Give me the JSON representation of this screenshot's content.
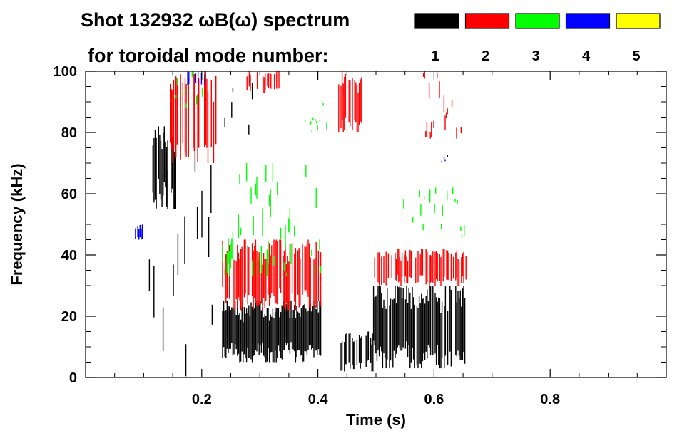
{
  "chart_data": {
    "type": "heatmap",
    "title": "Shot 132932 ωB(ω) spectrum",
    "subtitle": "for toroidal mode number:",
    "xlabel": "Time (s)",
    "ylabel": "Frequency (kHz)",
    "xlim": [
      0.0,
      1.0
    ],
    "ylim": [
      0,
      100
    ],
    "xticks": [
      0.2,
      0.4,
      0.6,
      0.8
    ],
    "xtick_labels": [
      "0.2",
      "0.4",
      "0.6",
      "0.8"
    ],
    "yticks": [
      0,
      20,
      40,
      60,
      80,
      100
    ],
    "ytick_labels": [
      "0",
      "20",
      "40",
      "60",
      "80",
      "100"
    ],
    "legend": {
      "placement": "top-right",
      "entries": [
        {
          "label": "1",
          "color": "#000000"
        },
        {
          "label": "2",
          "color": "#ff0000"
        },
        {
          "label": "3",
          "color": "#00ff00"
        },
        {
          "label": "4",
          "color": "#0000ff"
        },
        {
          "label": "5",
          "color": "#ffff00"
        }
      ]
    },
    "series": [
      {
        "name": "1",
        "color": "#000000",
        "regions": [
          {
            "t": [
              0.235,
              0.405
            ],
            "f_low": 5,
            "f_high": 25,
            "density": 1.0
          },
          {
            "t": [
              0.495,
              0.655
            ],
            "f_low": 3,
            "f_high": 30,
            "density": 0.85
          },
          {
            "t": [
              0.435,
              0.495
            ],
            "f_low": 2,
            "f_high": 15,
            "density": 0.5
          },
          {
            "t": [
              0.115,
              0.155
            ],
            "f_low": 55,
            "f_high": 82,
            "density": 0.7
          },
          {
            "t": [
              0.105,
              0.225
            ],
            "f_low": 0,
            "f_high": 80,
            "density": 0.25
          },
          {
            "t": [
              0.235,
              0.295
            ],
            "f_low": 75,
            "f_high": 98,
            "density": 0.25
          }
        ]
      },
      {
        "name": "2",
        "color": "#ff0000",
        "regions": [
          {
            "t": [
              0.235,
              0.405
            ],
            "f_low": 22,
            "f_high": 45,
            "density": 0.75
          },
          {
            "t": [
              0.495,
              0.655
            ],
            "f_low": 30,
            "f_high": 42,
            "density": 0.6
          },
          {
            "t": [
              0.145,
              0.225
            ],
            "f_low": 70,
            "f_high": 100,
            "density": 0.6
          },
          {
            "t": [
              0.435,
              0.475
            ],
            "f_low": 80,
            "f_high": 100,
            "density": 0.7
          },
          {
            "t": [
              0.275,
              0.335
            ],
            "f_low": 93,
            "f_high": 100,
            "density": 0.6
          },
          {
            "t": [
              0.575,
              0.655
            ],
            "f_low": 78,
            "f_high": 100,
            "density": 0.3
          }
        ]
      },
      {
        "name": "3",
        "color": "#00ff00",
        "regions": [
          {
            "t": [
              0.235,
              0.405
            ],
            "f_low": 33,
            "f_high": 70,
            "density": 0.4
          },
          {
            "t": [
              0.545,
              0.655
            ],
            "f_low": 45,
            "f_high": 62,
            "density": 0.35
          },
          {
            "t": [
              0.375,
              0.415
            ],
            "f_low": 80,
            "f_high": 90,
            "density": 0.4
          },
          {
            "t": [
              0.155,
              0.205
            ],
            "f_low": 88,
            "f_high": 100,
            "density": 0.3
          }
        ]
      },
      {
        "name": "4",
        "color": "#0000ff",
        "regions": [
          {
            "t": [
              0.085,
              0.105
            ],
            "f_low": 45,
            "f_high": 50,
            "density": 0.8
          },
          {
            "t": [
              0.175,
              0.205
            ],
            "f_low": 95,
            "f_high": 100,
            "density": 0.5
          },
          {
            "t": [
              0.585,
              0.635
            ],
            "f_low": 70,
            "f_high": 76,
            "density": 0.2
          }
        ]
      },
      {
        "name": "5",
        "color": "#ffff00",
        "regions": []
      }
    ]
  }
}
